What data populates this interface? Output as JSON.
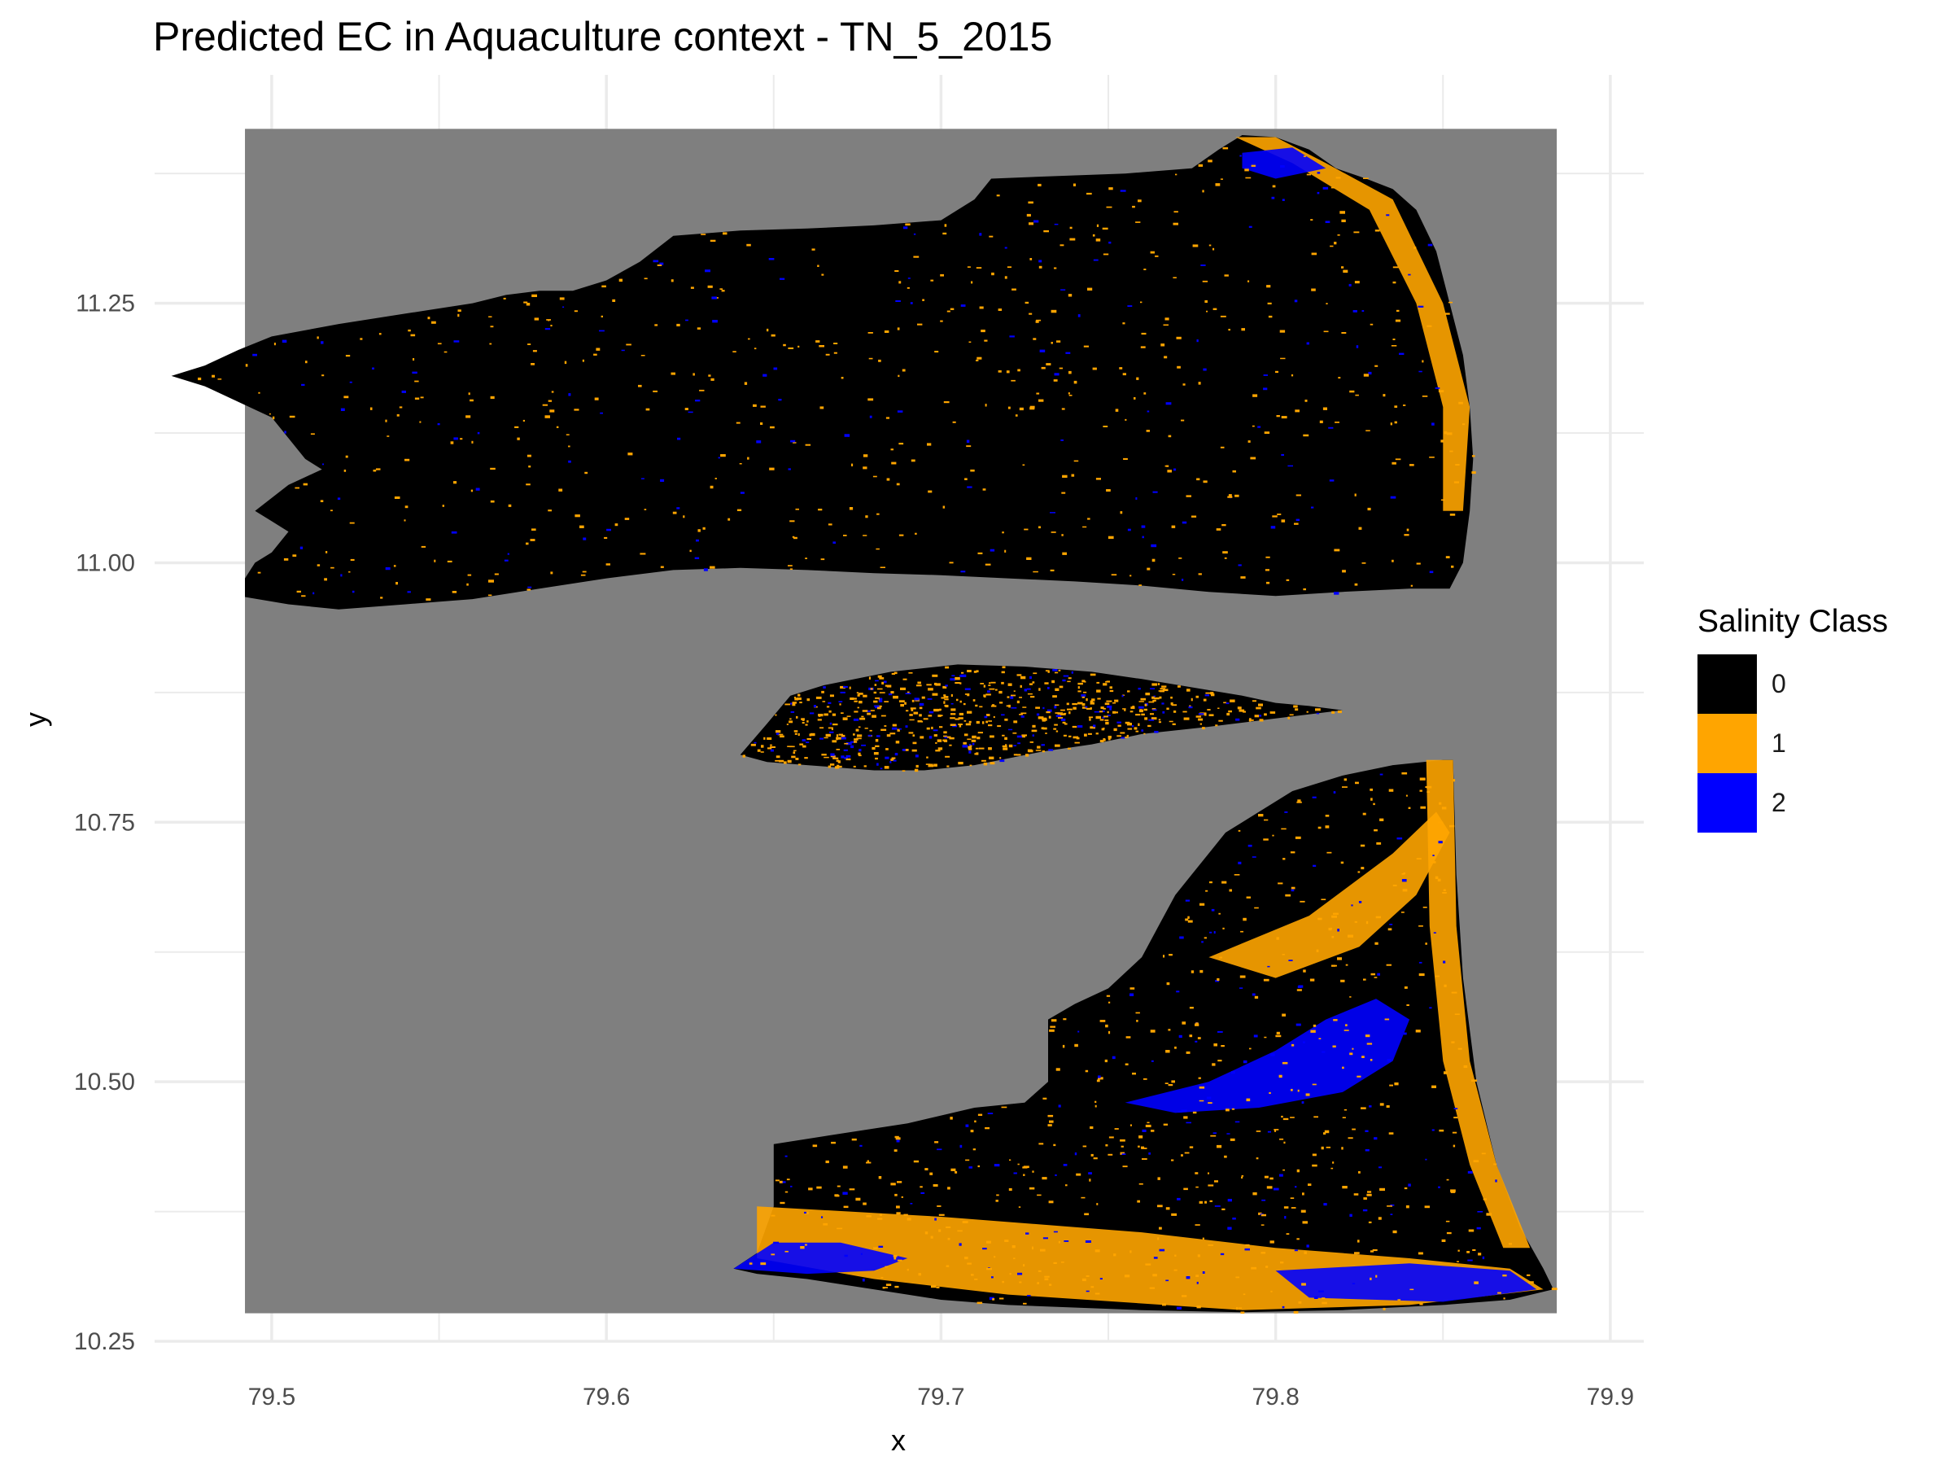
{
  "title": "Predicted EC in Aquaculture context - TN_5_2015",
  "colors": {
    "panel_background": "#ffffff",
    "grid": "#ebebeb",
    "raster_background": "#7f7f7f",
    "axis_text": "#4d4d4d"
  },
  "legend": {
    "title": "Salinity Class",
    "placement": "right",
    "items": [
      {
        "label": "0",
        "color": "#000000"
      },
      {
        "label": "1",
        "color": "#ffa500"
      },
      {
        "label": "2",
        "color": "#0000ff"
      }
    ]
  },
  "chart_data": {
    "type": "heatmap",
    "xlabel": "x",
    "ylabel": "y",
    "xlim": [
      79.465,
      79.91
    ],
    "ylim": [
      10.25,
      11.47
    ],
    "x_ticks": [
      "79.5",
      "79.6",
      "79.7",
      "79.8",
      "79.9"
    ],
    "y_ticks": [
      "10.25",
      "10.50",
      "10.75",
      "11.00",
      "11.25"
    ],
    "x_tick_values": [
      79.5,
      79.6,
      79.7,
      79.8,
      79.9
    ],
    "y_tick_values": [
      10.25,
      10.5,
      10.75,
      11.0,
      11.25
    ],
    "raster_extent": {
      "xmin": 79.492,
      "xmax": 79.884,
      "ymin": 10.277,
      "ymax": 11.418
    },
    "grid": true,
    "classes": [
      {
        "value": 0,
        "label": "0",
        "color": "#000000"
      },
      {
        "value": 1,
        "label": "1",
        "color": "#ffa500"
      },
      {
        "value": 2,
        "label": "2",
        "color": "#0000ff"
      }
    ],
    "regions": [
      {
        "name": "north-landmass",
        "class": 0,
        "outline": [
          [
            79.492,
            10.967
          ],
          [
            79.505,
            10.96
          ],
          [
            79.52,
            10.955
          ],
          [
            79.54,
            10.96
          ],
          [
            79.56,
            10.965
          ],
          [
            79.58,
            10.975
          ],
          [
            79.6,
            10.985
          ],
          [
            79.62,
            10.993
          ],
          [
            79.64,
            10.995
          ],
          [
            79.66,
            10.993
          ],
          [
            79.68,
            10.99
          ],
          [
            79.7,
            10.988
          ],
          [
            79.72,
            10.985
          ],
          [
            79.74,
            10.982
          ],
          [
            79.76,
            10.978
          ],
          [
            79.78,
            10.972
          ],
          [
            79.8,
            10.968
          ],
          [
            79.82,
            10.972
          ],
          [
            79.84,
            10.975
          ],
          [
            79.852,
            10.975
          ],
          [
            79.856,
            11.0
          ],
          [
            79.858,
            11.05
          ],
          [
            79.859,
            11.1
          ],
          [
            79.858,
            11.15
          ],
          [
            79.856,
            11.2
          ],
          [
            79.852,
            11.25
          ],
          [
            79.848,
            11.3
          ],
          [
            79.842,
            11.34
          ],
          [
            79.835,
            11.36
          ],
          [
            79.827,
            11.37
          ],
          [
            79.818,
            11.38
          ],
          [
            79.81,
            11.398
          ],
          [
            79.8,
            11.41
          ],
          [
            79.79,
            11.412
          ],
          [
            79.783,
            11.398
          ],
          [
            79.775,
            11.38
          ],
          [
            79.755,
            11.375
          ],
          [
            79.73,
            11.372
          ],
          [
            79.715,
            11.37
          ],
          [
            79.71,
            11.35
          ],
          [
            79.7,
            11.33
          ],
          [
            79.68,
            11.325
          ],
          [
            79.66,
            11.322
          ],
          [
            79.64,
            11.32
          ],
          [
            79.62,
            11.315
          ],
          [
            79.61,
            11.29
          ],
          [
            79.6,
            11.272
          ],
          [
            79.59,
            11.262
          ],
          [
            79.58,
            11.262
          ],
          [
            79.57,
            11.258
          ],
          [
            79.56,
            11.25
          ],
          [
            79.54,
            11.24
          ],
          [
            79.52,
            11.23
          ],
          [
            79.5,
            11.218
          ],
          [
            79.49,
            11.205
          ],
          [
            79.48,
            11.19
          ],
          [
            79.47,
            11.18
          ],
          [
            79.48,
            11.17
          ],
          [
            79.49,
            11.155
          ],
          [
            79.5,
            11.14
          ],
          [
            79.505,
            11.12
          ],
          [
            79.51,
            11.1
          ],
          [
            79.515,
            11.09
          ],
          [
            79.505,
            11.075
          ],
          [
            79.495,
            11.05
          ],
          [
            79.5,
            11.04
          ],
          [
            79.505,
            11.03
          ],
          [
            79.5,
            11.01
          ],
          [
            79.495,
            11.0
          ],
          [
            79.492,
            10.985
          ]
        ]
      },
      {
        "name": "middle-island",
        "class": 0,
        "outline": [
          [
            79.64,
            10.815
          ],
          [
            79.648,
            10.845
          ],
          [
            79.655,
            10.872
          ],
          [
            79.665,
            10.882
          ],
          [
            79.685,
            10.895
          ],
          [
            79.705,
            10.902
          ],
          [
            79.725,
            10.9
          ],
          [
            79.745,
            10.895
          ],
          [
            79.76,
            10.888
          ],
          [
            79.775,
            10.88
          ],
          [
            79.79,
            10.872
          ],
          [
            79.8,
            10.865
          ],
          [
            79.81,
            10.862
          ],
          [
            79.82,
            10.858
          ],
          [
            79.8,
            10.85
          ],
          [
            79.78,
            10.842
          ],
          [
            79.76,
            10.835
          ],
          [
            79.745,
            10.825
          ],
          [
            79.73,
            10.818
          ],
          [
            79.71,
            10.805
          ],
          [
            79.695,
            10.8
          ],
          [
            79.68,
            10.8
          ],
          [
            79.66,
            10.805
          ],
          [
            79.648,
            10.808
          ]
        ]
      },
      {
        "name": "south-landmass",
        "class": 0,
        "outline": [
          [
            79.638,
            10.32
          ],
          [
            79.645,
            10.335
          ],
          [
            79.65,
            10.38
          ],
          [
            79.65,
            10.44
          ],
          [
            79.67,
            10.45
          ],
          [
            79.69,
            10.46
          ],
          [
            79.71,
            10.475
          ],
          [
            79.725,
            10.48
          ],
          [
            79.732,
            10.5
          ],
          [
            79.732,
            10.56
          ],
          [
            79.74,
            10.575
          ],
          [
            79.75,
            10.59
          ],
          [
            79.76,
            10.62
          ],
          [
            79.765,
            10.65
          ],
          [
            79.77,
            10.68
          ],
          [
            79.775,
            10.7
          ],
          [
            79.78,
            10.72
          ],
          [
            79.785,
            10.74
          ],
          [
            79.795,
            10.76
          ],
          [
            79.805,
            10.78
          ],
          [
            79.82,
            10.795
          ],
          [
            79.835,
            10.805
          ],
          [
            79.85,
            10.81
          ],
          [
            79.853,
            10.81
          ],
          [
            79.854,
            10.7
          ],
          [
            79.856,
            10.6
          ],
          [
            79.86,
            10.5
          ],
          [
            79.866,
            10.42
          ],
          [
            79.873,
            10.36
          ],
          [
            79.88,
            10.32
          ],
          [
            79.883,
            10.3
          ],
          [
            79.87,
            10.29
          ],
          [
            79.85,
            10.285
          ],
          [
            79.82,
            10.28
          ],
          [
            79.79,
            10.278
          ],
          [
            79.76,
            10.28
          ],
          [
            79.72,
            10.285
          ],
          [
            79.7,
            10.29
          ],
          [
            79.68,
            10.3
          ],
          [
            79.66,
            10.31
          ],
          [
            79.645,
            10.315
          ]
        ]
      }
    ],
    "overlay_zones": [
      {
        "name": "southern-orange-band",
        "class": 1,
        "outline": [
          [
            79.645,
            10.38
          ],
          [
            79.7,
            10.37
          ],
          [
            79.76,
            10.355
          ],
          [
            79.8,
            10.34
          ],
          [
            79.84,
            10.33
          ],
          [
            79.87,
            10.32
          ],
          [
            79.88,
            10.3
          ],
          [
            79.84,
            10.285
          ],
          [
            79.79,
            10.28
          ],
          [
            79.72,
            10.295
          ],
          [
            79.68,
            10.31
          ],
          [
            79.645,
            10.33
          ]
        ]
      },
      {
        "name": "south-west-blue-patch",
        "class": 2,
        "outline": [
          [
            79.638,
            10.32
          ],
          [
            79.65,
            10.345
          ],
          [
            79.67,
            10.345
          ],
          [
            79.69,
            10.33
          ],
          [
            79.68,
            10.318
          ],
          [
            79.66,
            10.315
          ]
        ]
      },
      {
        "name": "south-east-blue-patch",
        "class": 2,
        "outline": [
          [
            79.8,
            10.318
          ],
          [
            79.84,
            10.325
          ],
          [
            79.87,
            10.318
          ],
          [
            79.878,
            10.3
          ],
          [
            79.85,
            10.288
          ],
          [
            79.81,
            10.292
          ]
        ]
      },
      {
        "name": "eastern-orange-coast",
        "class": 1,
        "outline": [
          [
            79.845,
            10.81
          ],
          [
            79.853,
            10.81
          ],
          [
            79.854,
            10.65
          ],
          [
            79.858,
            10.52
          ],
          [
            79.866,
            10.42
          ],
          [
            79.876,
            10.34
          ],
          [
            79.868,
            10.34
          ],
          [
            79.858,
            10.42
          ],
          [
            79.85,
            10.52
          ],
          [
            79.846,
            10.65
          ]
        ]
      },
      {
        "name": "central-blue-lagoon",
        "class": 2,
        "outline": [
          [
            79.755,
            10.48
          ],
          [
            79.78,
            10.5
          ],
          [
            79.8,
            10.53
          ],
          [
            79.815,
            10.56
          ],
          [
            79.83,
            10.58
          ],
          [
            79.84,
            10.56
          ],
          [
            79.835,
            10.52
          ],
          [
            79.82,
            10.49
          ],
          [
            79.795,
            10.475
          ],
          [
            79.77,
            10.47
          ]
        ]
      },
      {
        "name": "central-orange-channel",
        "class": 1,
        "outline": [
          [
            79.78,
            10.62
          ],
          [
            79.81,
            10.66
          ],
          [
            79.835,
            10.72
          ],
          [
            79.848,
            10.76
          ],
          [
            79.852,
            10.74
          ],
          [
            79.842,
            10.68
          ],
          [
            79.825,
            10.63
          ],
          [
            79.8,
            10.6
          ]
        ]
      },
      {
        "name": "north-east-orange-coast",
        "class": 1,
        "outline": [
          [
            79.788,
            11.41
          ],
          [
            79.8,
            11.41
          ],
          [
            79.815,
            11.385
          ],
          [
            79.835,
            11.35
          ],
          [
            79.85,
            11.25
          ],
          [
            79.858,
            11.15
          ],
          [
            79.856,
            11.05
          ],
          [
            79.85,
            11.05
          ],
          [
            79.85,
            11.15
          ],
          [
            79.842,
            11.25
          ],
          [
            79.828,
            11.34
          ],
          [
            79.805,
            11.385
          ]
        ]
      },
      {
        "name": "north-east-blue-patch",
        "class": 2,
        "outline": [
          [
            79.79,
            11.395
          ],
          [
            79.805,
            11.4
          ],
          [
            79.815,
            11.38
          ],
          [
            79.8,
            11.37
          ],
          [
            79.79,
            11.38
          ]
        ]
      }
    ]
  }
}
